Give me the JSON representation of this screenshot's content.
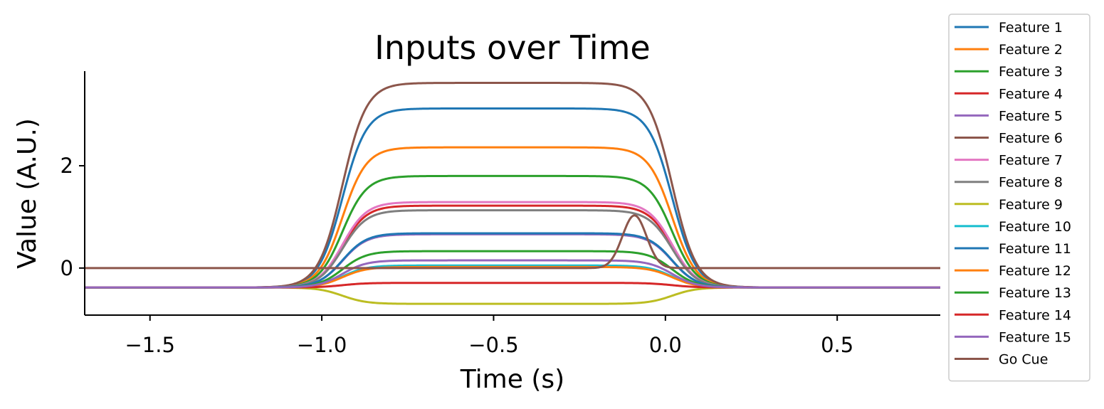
{
  "chart_data": {
    "type": "line",
    "title": "Inputs over Time",
    "xlabel": "Time (s)",
    "ylabel": "Value (A.U.)",
    "xlim": [
      -1.69,
      0.8
    ],
    "ylim": [
      -0.92,
      3.85
    ],
    "xticks": [
      -1.5,
      -1.0,
      -0.5,
      0.0,
      0.5
    ],
    "xtick_labels": [
      "−1.5",
      "−1.0",
      "−0.5",
      "0.0",
      "0.5"
    ],
    "yticks": [
      0,
      2
    ],
    "ytick_labels": [
      "0",
      "2"
    ],
    "grid": false,
    "legend_position": "outside-right",
    "stimulus_window": {
      "start": -1.0,
      "end": 0.0,
      "baseline": -0.38
    },
    "series": [
      {
        "name": "Feature 1",
        "color": "#1f77b4",
        "plateau": 3.12
      },
      {
        "name": "Feature 2",
        "color": "#ff7f0e",
        "plateau": 2.36
      },
      {
        "name": "Feature 3",
        "color": "#2ca02c",
        "plateau": 1.8
      },
      {
        "name": "Feature 4",
        "color": "#d62728",
        "plateau": 1.22
      },
      {
        "name": "Feature 5",
        "color": "#9467bd",
        "plateau": 0.66
      },
      {
        "name": "Feature 6",
        "color": "#8c564b",
        "plateau": 3.62
      },
      {
        "name": "Feature 7",
        "color": "#e377c2",
        "plateau": 1.29
      },
      {
        "name": "Feature 8",
        "color": "#7f7f7f",
        "plateau": 1.13
      },
      {
        "name": "Feature 9",
        "color": "#bcbd22",
        "plateau": -0.7
      },
      {
        "name": "Feature 10",
        "color": "#17becf",
        "plateau": 0.05
      },
      {
        "name": "Feature 11",
        "color": "#1f77b4",
        "plateau": 0.68
      },
      {
        "name": "Feature 12",
        "color": "#ff7f0e",
        "plateau": 0.02
      },
      {
        "name": "Feature 13",
        "color": "#2ca02c",
        "plateau": 0.33
      },
      {
        "name": "Feature 14",
        "color": "#d62728",
        "plateau": -0.29
      },
      {
        "name": "Feature 15",
        "color": "#9467bd",
        "plateau": 0.15
      },
      {
        "name": "Go Cue",
        "color": "#8c564b",
        "type": "pulse",
        "baseline": 0.0,
        "peak": 1.03,
        "peak_time": -0.09
      }
    ]
  }
}
